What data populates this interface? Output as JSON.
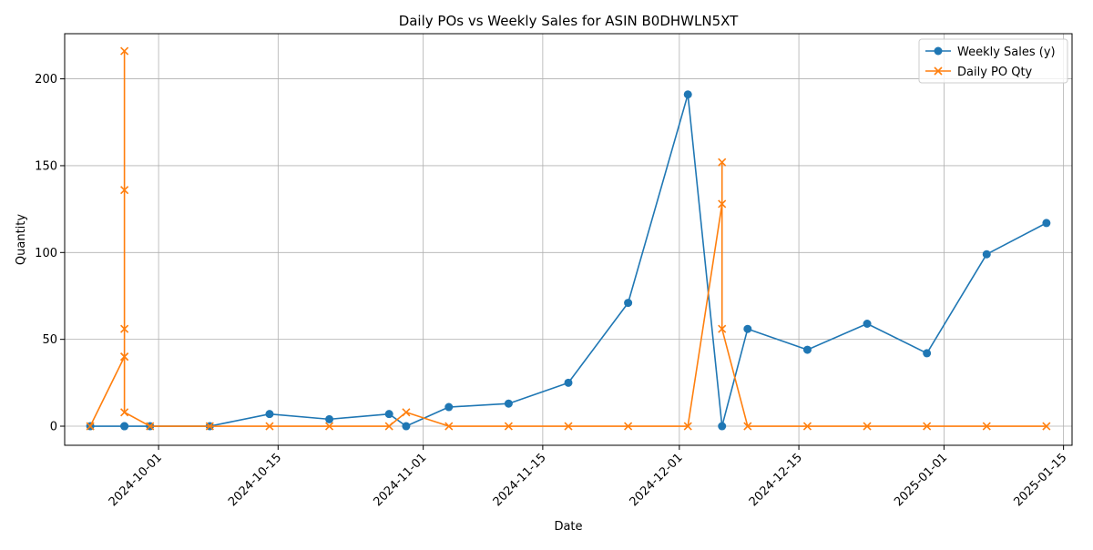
{
  "chart_data": {
    "type": "line",
    "title": "Daily POs vs Weekly Sales for ASIN B0DHWLN5XT",
    "xlabel": "Date",
    "ylabel": "Quantity",
    "x_axis_type": "date",
    "xlim": [
      "2024-09-20",
      "2025-01-16"
    ],
    "ylim": [
      -11,
      226
    ],
    "x_ticks": [
      "2024-10-01",
      "2024-10-15",
      "2024-11-01",
      "2024-11-15",
      "2024-12-01",
      "2024-12-15",
      "2025-01-01",
      "2025-01-15"
    ],
    "y_ticks": [
      0,
      50,
      100,
      150,
      200
    ],
    "grid": true,
    "legend_position": "top-right",
    "series": [
      {
        "name": "Weekly Sales (y)",
        "color": "#1f77b4",
        "marker": "circle",
        "points": [
          {
            "x": "2024-09-23",
            "y": 0
          },
          {
            "x": "2024-09-27",
            "y": 0
          },
          {
            "x": "2024-09-27",
            "y": 0
          },
          {
            "x": "2024-09-30",
            "y": 0
          },
          {
            "x": "2024-10-07",
            "y": 0
          },
          {
            "x": "2024-10-14",
            "y": 7
          },
          {
            "x": "2024-10-21",
            "y": 4
          },
          {
            "x": "2024-10-28",
            "y": 7
          },
          {
            "x": "2024-10-30",
            "y": 0
          },
          {
            "x": "2024-11-04",
            "y": 11
          },
          {
            "x": "2024-11-11",
            "y": 13
          },
          {
            "x": "2024-11-18",
            "y": 25
          },
          {
            "x": "2024-11-25",
            "y": 71
          },
          {
            "x": "2024-12-02",
            "y": 191
          },
          {
            "x": "2024-12-06",
            "y": 0
          },
          {
            "x": "2024-12-09",
            "y": 56
          },
          {
            "x": "2024-12-16",
            "y": 44
          },
          {
            "x": "2024-12-23",
            "y": 59
          },
          {
            "x": "2024-12-30",
            "y": 42
          },
          {
            "x": "2025-01-06",
            "y": 99
          },
          {
            "x": "2025-01-13",
            "y": 117
          }
        ]
      },
      {
        "name": "Daily PO Qty",
        "color": "#ff7f0e",
        "marker": "x",
        "points": [
          {
            "x": "2024-09-23",
            "y": 0
          },
          {
            "x": "2024-09-27",
            "y": 40
          },
          {
            "x": "2024-09-27",
            "y": 216
          },
          {
            "x": "2024-09-27",
            "y": 136
          },
          {
            "x": "2024-09-27",
            "y": 56
          },
          {
            "x": "2024-09-27",
            "y": 40
          },
          {
            "x": "2024-09-27",
            "y": 8
          },
          {
            "x": "2024-09-30",
            "y": 0
          },
          {
            "x": "2024-10-07",
            "y": 0
          },
          {
            "x": "2024-10-14",
            "y": 0
          },
          {
            "x": "2024-10-21",
            "y": 0
          },
          {
            "x": "2024-10-28",
            "y": 0
          },
          {
            "x": "2024-10-30",
            "y": 8
          },
          {
            "x": "2024-11-04",
            "y": 0
          },
          {
            "x": "2024-11-11",
            "y": 0
          },
          {
            "x": "2024-11-18",
            "y": 0
          },
          {
            "x": "2024-11-25",
            "y": 0
          },
          {
            "x": "2024-12-02",
            "y": 0
          },
          {
            "x": "2024-12-06",
            "y": 128
          },
          {
            "x": "2024-12-06",
            "y": 152
          },
          {
            "x": "2024-12-06",
            "y": 56
          },
          {
            "x": "2024-12-09",
            "y": 0
          },
          {
            "x": "2024-12-16",
            "y": 0
          },
          {
            "x": "2024-12-23",
            "y": 0
          },
          {
            "x": "2024-12-30",
            "y": 0
          },
          {
            "x": "2025-01-06",
            "y": 0
          },
          {
            "x": "2025-01-13",
            "y": 0
          }
        ]
      }
    ]
  }
}
